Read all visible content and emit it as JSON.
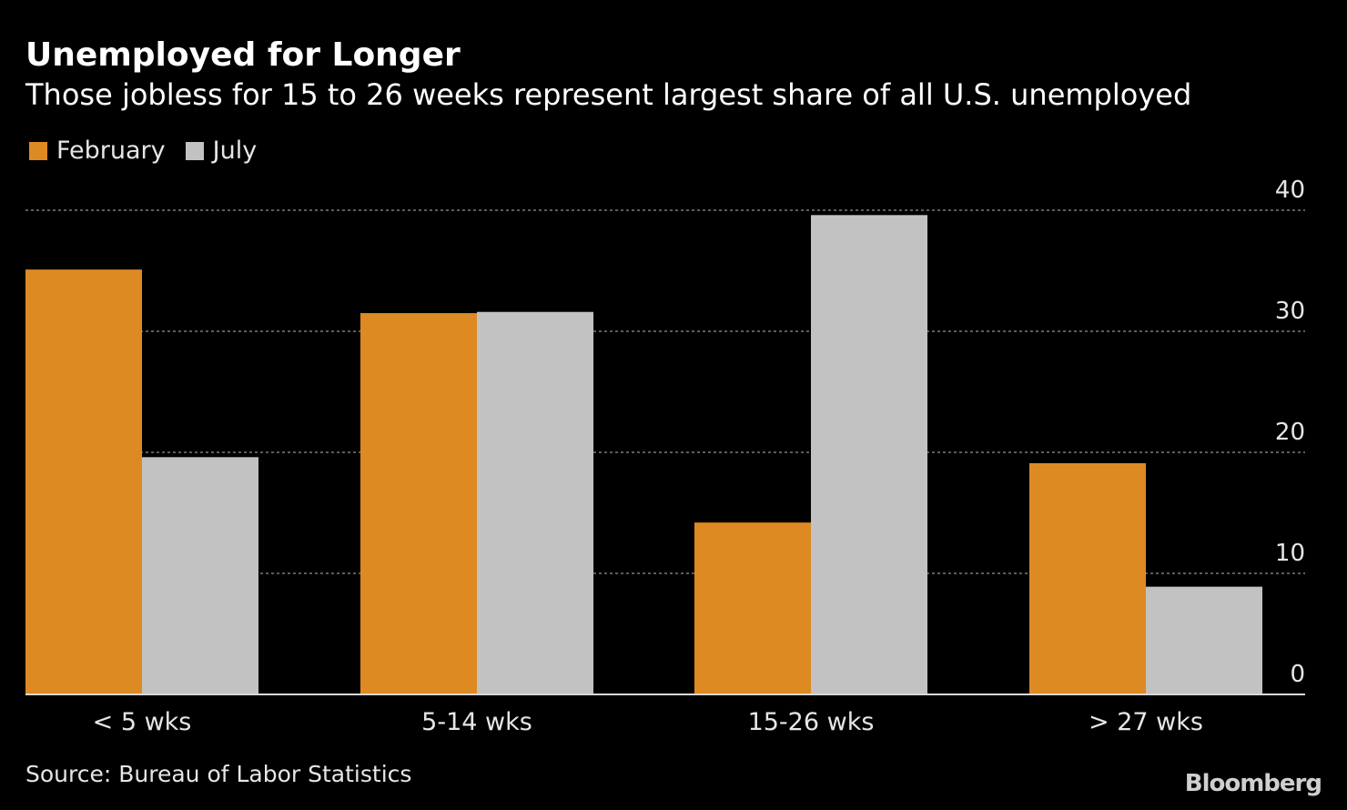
{
  "colors": {
    "background": "#000000",
    "february": "#de8a23",
    "july": "#c2c2c2",
    "grid": "#7a7a7a",
    "text": "#ffffff",
    "muted_text": "#e6e6e6"
  },
  "chart_data": {
    "type": "bar",
    "title": "Unemployed for Longer",
    "subtitle": "Those jobless for 15 to 26 weeks represent largest share of all U.S. unemployed",
    "categories": [
      "< 5 wks",
      "5-14 wks",
      "15-26 wks",
      "> 27 wks"
    ],
    "series": [
      {
        "name": "February",
        "color": "#de8a23",
        "values": [
          35.1,
          31.5,
          14.2,
          19.1
        ]
      },
      {
        "name": "July",
        "color": "#c2c2c2",
        "values": [
          19.6,
          31.6,
          39.6,
          8.9
        ]
      }
    ],
    "ylim": [
      0,
      40
    ],
    "yticks": [
      "0",
      "10",
      "20",
      "30",
      "40"
    ],
    "ytick_values": [
      0,
      10,
      20,
      30,
      40
    ],
    "grid": true,
    "legend_position": "top-left",
    "xlabel": "",
    "ylabel": ""
  },
  "footer": {
    "source": "Source: Bureau of Labor Statistics",
    "brand": "Bloomberg"
  }
}
